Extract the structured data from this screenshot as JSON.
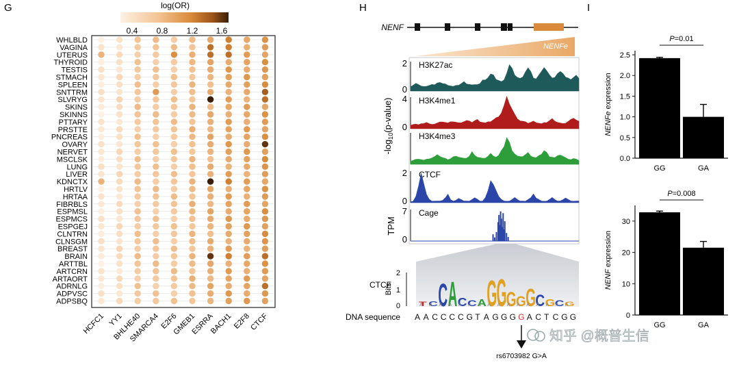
{
  "panel_letters": {
    "g": "G",
    "h": "H",
    "i": "I"
  },
  "watermark": "知乎 @概普生信",
  "colors": {
    "track_h3k27ac": "#1f5a5a",
    "track_h3k4me1": "#b01c1c",
    "track_h3k4me3": "#2e9e3a",
    "track_ctcf": "#2b46a8",
    "track_cage": "#2b46a8",
    "orange": "#d98a3a",
    "bar": "#000000"
  },
  "chart_data": [
    {
      "type": "heatmap",
      "panel": "G",
      "title": "log(OR)",
      "colorbar_ticks": [
        "0.4",
        "0.8",
        "1.2",
        "1.6"
      ],
      "colorbar_range": [
        0.2,
        1.8
      ],
      "rows": [
        "WHLBLD",
        "VAGINA",
        "UTERUS",
        "THYROID",
        "TESTIS",
        "STMACH",
        "SPLEEN",
        "SNTTRM",
        "SLVRYG",
        "SKINS",
        "SKINNS",
        "PTTARY",
        "PRSTTE",
        "PNCREAS",
        "OVARY",
        "NERVET",
        "MSCLSK",
        "LUNG",
        "LIVER",
        "KDNCTX",
        "HRTLV",
        "HRTAA",
        "FIBRBLS",
        "ESPMSL",
        "ESPMCS",
        "ESPGEJ",
        "CLNTRN",
        "CLNSGM",
        "BREAST",
        "BRAIN",
        "ARTTBL",
        "ARTCRN",
        "ARTAORT",
        "ADRNLG",
        "ADPVSC",
        "ADPSBQ"
      ],
      "columns": [
        "HCFC1",
        "YY1",
        "BHLHE40",
        "SMARCA4",
        "E2F6",
        "GMEB1",
        "ESRRA",
        "BACH1",
        "E2F8",
        "CTCF"
      ],
      "col_base": [
        0.3,
        0.4,
        0.7,
        0.7,
        0.7,
        0.8,
        0.9,
        1.0,
        1.0,
        1.1
      ],
      "highlights": [
        {
          "row": "VAGINA",
          "col": "ESRRA",
          "value": 1.4
        },
        {
          "row": "VAGINA",
          "col": "BACH1",
          "value": 1.3
        },
        {
          "row": "UTERUS",
          "col": "HCFC1",
          "value": 0.9
        },
        {
          "row": "UTERUS",
          "col": "E2F6",
          "value": 1.2
        },
        {
          "row": "UTERUS",
          "col": "ESRRA",
          "value": 1.4
        },
        {
          "row": "UTERUS",
          "col": "BACH1",
          "value": 1.4
        },
        {
          "row": "WHLBLD",
          "col": "BACH1",
          "value": 1.3
        },
        {
          "row": "SNTTRM",
          "col": "SMARCA4",
          "value": 1.1
        },
        {
          "row": "SNTTRM",
          "col": "CTCF",
          "value": 1.5
        },
        {
          "row": "SLVRYG",
          "col": "ESRRA",
          "value": 1.8
        },
        {
          "row": "SLVRYG",
          "col": "CTCF",
          "value": 1.4
        },
        {
          "row": "OVARY",
          "col": "CTCF",
          "value": 1.7
        },
        {
          "row": "KDNCTX",
          "col": "HCFC1",
          "value": 0.9
        },
        {
          "row": "KDNCTX",
          "col": "ESRRA",
          "value": 1.8
        },
        {
          "row": "KDNCTX",
          "col": "BACH1",
          "value": 1.3
        },
        {
          "row": "BRAIN",
          "col": "ESRRA",
          "value": 1.7
        },
        {
          "row": "BRAIN",
          "col": "BACH1",
          "value": 1.3
        },
        {
          "row": "BRAIN",
          "col": "CTCF",
          "value": 1.4
        },
        {
          "row": "ADRNLG",
          "col": "CTCF",
          "value": 1.4
        }
      ]
    },
    {
      "type": "area",
      "panel": "H",
      "gene_label": "NENF",
      "enhancer_label": "NENFe",
      "y_axis_label_a": "-log",
      "y_axis_label_sub": "10",
      "y_axis_label_b": "(p-value)",
      "tpm_label": "TPM",
      "tracks": [
        {
          "name": "H3K27ac",
          "ymax_label": "2",
          "ymin_label": "0",
          "ymax": 2,
          "values": [
            0.3,
            0.4,
            0.5,
            0.4,
            0.35,
            0.3,
            0.3,
            0.4,
            0.45,
            0.4,
            0.5,
            0.6,
            0.5,
            0.45,
            0.4,
            0.35,
            0.3,
            0.35,
            0.4,
            0.5,
            0.6,
            0.5,
            0.45,
            0.4,
            0.4,
            0.45,
            0.5,
            0.7,
            0.8,
            0.9,
            1.1,
            1.0,
            0.8,
            0.7,
            0.6,
            0.8,
            1.2,
            1.7,
            1.4,
            1.1,
            0.9,
            0.8,
            1.0,
            1.3,
            1.5,
            1.2,
            0.9,
            0.8,
            1.0,
            1.4,
            1.6,
            1.3,
            1.0,
            0.9,
            0.9,
            1.1,
            1.4,
            1.2,
            0.9,
            0.8,
            0.8,
            0.9,
            1.0,
            0.9
          ]
        },
        {
          "name": "H3K4me1",
          "ymax_label": "4",
          "ymin_label": "0",
          "ymax": 4,
          "values": [
            0.4,
            0.5,
            0.6,
            0.5,
            0.6,
            0.7,
            0.8,
            0.6,
            0.5,
            0.6,
            0.7,
            0.8,
            0.9,
            0.8,
            0.7,
            0.8,
            0.9,
            0.8,
            0.7,
            0.8,
            0.9,
            1.0,
            0.9,
            0.8,
            1.0,
            1.1,
            0.9,
            0.8,
            0.7,
            0.8,
            0.9,
            1.1,
            1.3,
            1.6,
            2.0,
            2.8,
            3.7,
            3.2,
            2.4,
            1.7,
            1.3,
            1.0,
            0.9,
            0.8,
            0.7,
            0.8,
            0.9,
            0.8,
            0.7,
            0.6,
            0.7,
            0.8,
            1.0,
            1.2,
            1.0,
            0.8,
            0.7,
            0.6,
            0.7,
            0.9,
            1.1,
            1.4,
            1.1,
            0.9
          ]
        },
        {
          "name": "H3K4me3",
          "ymax_label": "",
          "ymin_label": "",
          "ymax": 4,
          "values": [
            0.4,
            0.5,
            0.6,
            0.7,
            0.6,
            0.5,
            0.6,
            0.7,
            0.8,
            0.9,
            1.3,
            1.0,
            0.8,
            0.7,
            0.6,
            0.7,
            0.9,
            1.1,
            0.9,
            0.8,
            0.7,
            0.8,
            1.0,
            1.5,
            1.2,
            0.9,
            0.8,
            0.7,
            0.8,
            1.0,
            1.3,
            1.1,
            0.9,
            1.1,
            1.6,
            2.3,
            3.3,
            2.6,
            1.8,
            1.3,
            1.0,
            0.9,
            1.0,
            1.2,
            1.4,
            1.1,
            0.9,
            0.8,
            1.0,
            1.3,
            1.7,
            1.4,
            1.0,
            0.9,
            0.8,
            1.0,
            1.2,
            1.0,
            0.8,
            0.7,
            0.6,
            0.7,
            0.6,
            0.5
          ]
        },
        {
          "name": "CTCF",
          "ymax_label": "2",
          "ymin_label": "0",
          "ymax": 2,
          "values": [
            0.05,
            0.1,
            0.4,
            1.0,
            1.7,
            1.2,
            0.5,
            0.2,
            0.1,
            0.1,
            0.1,
            0.1,
            0.15,
            0.3,
            0.5,
            0.2,
            0.1,
            0.15,
            0.25,
            0.2,
            0.1,
            0.1,
            0.1,
            0.2,
            0.3,
            0.2,
            0.1,
            0.1,
            0.3,
            0.8,
            1.4,
            1.1,
            0.7,
            0.4,
            0.2,
            0.1,
            0.1,
            0.1,
            0.2,
            0.3,
            0.2,
            0.1,
            0.1,
            0.1,
            0.2,
            0.3,
            0.5,
            0.3,
            0.2,
            0.1,
            0.1,
            0.1,
            0.2,
            0.3,
            0.2,
            0.1,
            0.1,
            0.2,
            0.3,
            0.2,
            0.1,
            0.1,
            0.1,
            0.1
          ]
        },
        {
          "name": "Cage",
          "ymax_label": "7",
          "ymin_label": "0",
          "ymax": 7,
          "values": [
            0,
            0,
            0,
            0,
            0,
            0,
            0,
            0,
            0,
            0,
            0,
            0,
            0,
            0,
            0,
            0,
            0,
            0,
            0,
            0,
            0,
            0,
            0,
            0,
            0,
            0,
            0,
            0,
            0,
            0,
            0,
            0,
            0,
            0,
            0,
            0,
            0,
            0,
            0,
            0,
            0,
            0,
            0,
            0,
            0,
            0,
            0,
            0,
            0,
            0,
            0,
            0,
            0,
            0,
            0,
            0,
            0,
            0,
            0,
            0,
            0,
            0,
            0,
            0
          ]
        }
      ],
      "cage_peaks": [
        {
          "x": 0.49,
          "v": 1.5
        },
        {
          "x": 0.5,
          "v": 0.8
        },
        {
          "x": 0.51,
          "v": 2.0
        },
        {
          "x": 0.52,
          "v": 4.2
        },
        {
          "x": 0.525,
          "v": 5.8
        },
        {
          "x": 0.53,
          "v": 3.6
        },
        {
          "x": 0.535,
          "v": 6.6
        },
        {
          "x": 0.54,
          "v": 5.0
        },
        {
          "x": 0.545,
          "v": 3.1
        },
        {
          "x": 0.55,
          "v": 6.2
        },
        {
          "x": 0.555,
          "v": 2.6
        },
        {
          "x": 0.56,
          "v": 4.4
        },
        {
          "x": 0.57,
          "v": 1.8
        },
        {
          "x": 0.58,
          "v": 0.9
        }
      ],
      "motif_label": "CTCF",
      "bits_label": "Bits",
      "bits_ticks": [
        "2",
        "1",
        "0"
      ],
      "motif_letters": [
        "T",
        "C",
        "C",
        "A",
        "C",
        "C",
        "A",
        "G",
        "G",
        "G",
        "G",
        "G",
        "C",
        "G",
        "C",
        "G"
      ],
      "dna_label": "DNA sequence",
      "dna_sequence": [
        "A",
        "A",
        "C",
        "C",
        "C",
        "C",
        "G",
        "T",
        "A",
        "G",
        "G",
        "G",
        "G",
        "A",
        "C",
        "T",
        "C",
        "G",
        "G"
      ],
      "dna_variant_index": 12,
      "variant_label": "rs6703982 G>A"
    },
    {
      "type": "bar",
      "panel": "I-top",
      "categories": [
        "GG",
        "GA"
      ],
      "values": [
        2.42,
        1.0
      ],
      "errors": [
        0.02,
        0.3
      ],
      "ylabel_italic": "NENFe",
      "ylabel_rest": " expression",
      "ylim": [
        0,
        2.6
      ],
      "yticks": [
        "0.0",
        "0.5",
        "1.0",
        "1.5",
        "2.0",
        "2.5"
      ],
      "pvalue_italic": "P",
      "pvalue_rest": "=0.01"
    },
    {
      "type": "bar",
      "panel": "I-bottom",
      "categories": [
        "GG",
        "GA"
      ],
      "values": [
        32.8,
        21.5
      ],
      "errors": [
        0.4,
        2.0
      ],
      "ylabel_italic": "NENF",
      "ylabel_rest": " expression",
      "ylim": [
        0,
        35
      ],
      "yticks": [
        "0",
        "10",
        "20",
        "30"
      ],
      "pvalue_italic": "P",
      "pvalue_rest": "=0.008"
    }
  ]
}
